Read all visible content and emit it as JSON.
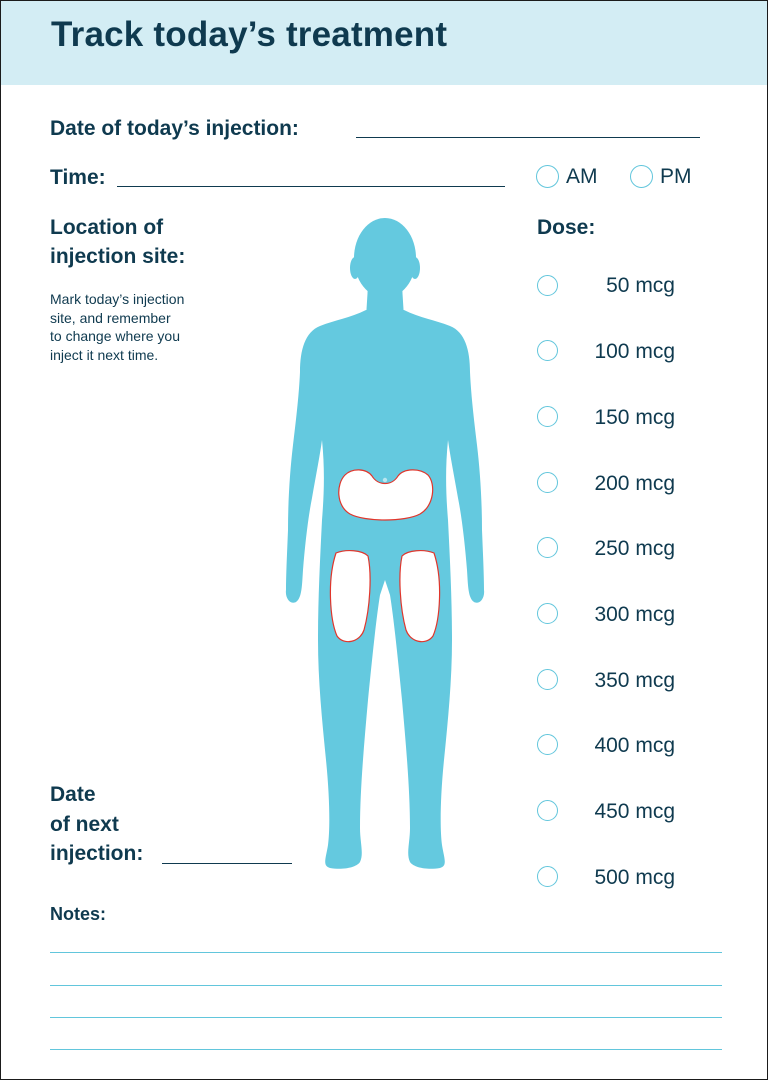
{
  "header": {
    "title": "Track today’s treatment"
  },
  "form": {
    "date_label": "Date of today’s injection:",
    "time_label": "Time:",
    "am_label": "AM",
    "pm_label": "PM",
    "location_label_1": "Location of",
    "location_label_2": "injection site:",
    "location_hint": [
      "Mark today’s injection",
      "site, and remember",
      "to change where you",
      "inject it next time."
    ],
    "dose_label": "Dose:",
    "dose_options": [
      "50 mcg",
      "100 mcg",
      "150 mcg",
      "200 mcg",
      "250 mcg",
      "300 mcg",
      "350 mcg",
      "400 mcg",
      "450 mcg",
      "500 mcg"
    ],
    "next_date_label_1": "Date",
    "next_date_label_2": "of next",
    "next_date_label_3": "injection:",
    "notes_label": "Notes:"
  },
  "colors": {
    "navy": "#0f3a4f",
    "header_bg": "#d3edf4",
    "accent": "#62c6dc",
    "body_fill": "#64c9df",
    "site_outline": "#e0362c"
  },
  "icons": {
    "figure": "human-body-figure",
    "option": "radio-circle"
  }
}
